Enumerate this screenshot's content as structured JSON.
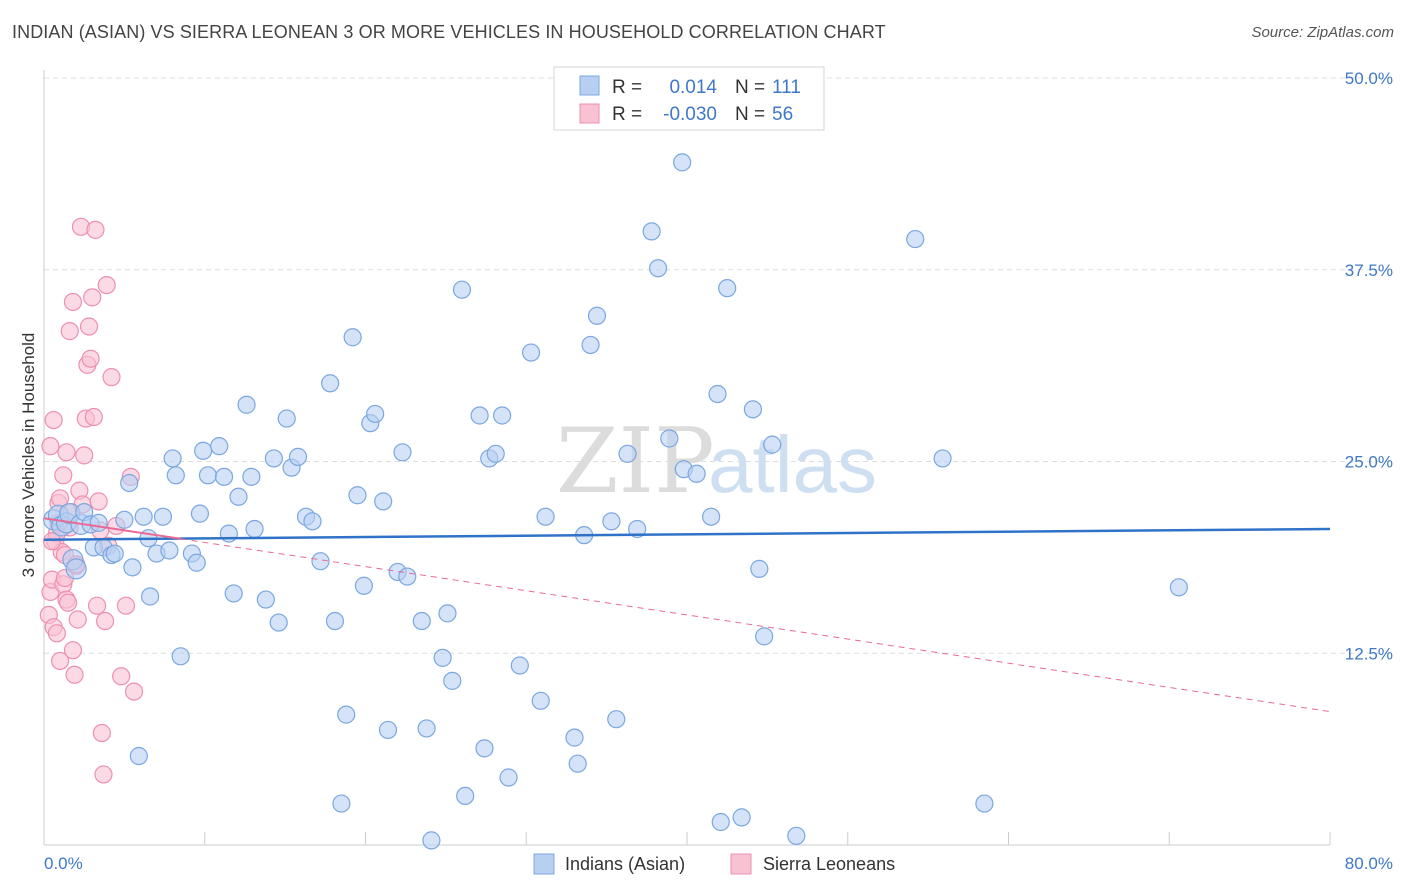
{
  "title": "INDIAN (ASIAN) VS SIERRA LEONEAN 3 OR MORE VEHICLES IN HOUSEHOLD CORRELATION CHART",
  "source": "Source: ZipAtlas.com",
  "watermark": {
    "zip": "ZIP",
    "atlas": "atlas"
  },
  "colors": {
    "blue_fill": "#b7d0f1",
    "blue_stroke": "#7ba7e0",
    "blue_line": "#2f73c9",
    "pink_fill": "#f8c2d3",
    "pink_stroke": "#ee8fb0",
    "pink_line": "#e86a95",
    "axis_text_blue": "#3f78c7",
    "grid": "#dddddd"
  },
  "legend": {
    "rows": [
      {
        "r_label": "R =",
        "r_value": "0.014",
        "n_label": "N =",
        "n_value": "111"
      },
      {
        "r_label": "R =",
        "r_value": "-0.030",
        "n_label": "N =",
        "n_value": "56"
      }
    ]
  },
  "bottom_legend": {
    "items": [
      "Indians (Asian)",
      "Sierra Leoneans"
    ]
  },
  "chart_data": {
    "type": "scatter",
    "title": "INDIAN (ASIAN) VS SIERRA LEONEAN 3 OR MORE VEHICLES IN HOUSEHOLD CORRELATION CHART",
    "xlabel": "",
    "ylabel": "3 or more Vehicles in Household",
    "xlim": [
      0,
      80
    ],
    "ylim": [
      0,
      50
    ],
    "x_tick_labels": [
      "0.0%",
      "80.0%"
    ],
    "y_ticks": [
      12.5,
      25.0,
      37.5,
      50.0
    ],
    "y_tick_labels": [
      "12.5%",
      "25.0%",
      "37.5%",
      "50.0%"
    ],
    "series": [
      {
        "name": "Indians (Asian)",
        "color": "#b7d0f1",
        "trend": {
          "x": [
            0,
            80
          ],
          "y": [
            19.9,
            20.6
          ]
        },
        "points": [
          [
            0.6,
            21.2
          ],
          [
            0.9,
            21.5
          ],
          [
            1.1,
            20.8
          ],
          [
            1.4,
            21.0
          ],
          [
            1.6,
            21.6
          ],
          [
            1.8,
            18.6
          ],
          [
            2.0,
            18.0
          ],
          [
            2.3,
            20.9
          ],
          [
            2.5,
            21.7
          ],
          [
            2.9,
            20.9
          ],
          [
            3.1,
            19.4
          ],
          [
            3.4,
            21.0
          ],
          [
            3.7,
            19.4
          ],
          [
            4.2,
            18.9
          ],
          [
            4.4,
            19.0
          ],
          [
            5.0,
            21.2
          ],
          [
            5.3,
            23.6
          ],
          [
            5.5,
            18.1
          ],
          [
            5.9,
            5.8
          ],
          [
            6.2,
            21.4
          ],
          [
            6.5,
            20.0
          ],
          [
            6.6,
            16.2
          ],
          [
            7.0,
            19.0
          ],
          [
            7.4,
            21.4
          ],
          [
            7.8,
            19.2
          ],
          [
            8.0,
            25.2
          ],
          [
            8.2,
            24.1
          ],
          [
            8.5,
            12.3
          ],
          [
            9.2,
            19.0
          ],
          [
            9.5,
            18.4
          ],
          [
            9.7,
            21.6
          ],
          [
            9.9,
            25.7
          ],
          [
            10.2,
            24.1
          ],
          [
            10.9,
            26.0
          ],
          [
            11.2,
            24.0
          ],
          [
            11.5,
            20.3
          ],
          [
            11.8,
            16.4
          ],
          [
            12.1,
            22.7
          ],
          [
            12.6,
            28.7
          ],
          [
            12.9,
            24.0
          ],
          [
            13.1,
            20.6
          ],
          [
            13.8,
            16.0
          ],
          [
            14.3,
            25.2
          ],
          [
            14.6,
            14.5
          ],
          [
            15.1,
            27.8
          ],
          [
            15.4,
            24.6
          ],
          [
            15.8,
            25.3
          ],
          [
            16.3,
            21.4
          ],
          [
            16.7,
            21.1
          ],
          [
            17.2,
            18.5
          ],
          [
            17.8,
            30.1
          ],
          [
            18.1,
            14.6
          ],
          [
            18.5,
            2.7
          ],
          [
            18.8,
            8.5
          ],
          [
            19.2,
            33.1
          ],
          [
            19.5,
            22.8
          ],
          [
            19.9,
            16.9
          ],
          [
            20.3,
            27.5
          ],
          [
            20.6,
            28.1
          ],
          [
            21.1,
            22.4
          ],
          [
            21.4,
            7.5
          ],
          [
            22.0,
            17.8
          ],
          [
            22.3,
            25.6
          ],
          [
            22.6,
            17.5
          ],
          [
            23.5,
            14.6
          ],
          [
            23.8,
            7.6
          ],
          [
            24.1,
            0.3
          ],
          [
            24.8,
            12.2
          ],
          [
            25.1,
            15.1
          ],
          [
            25.4,
            10.7
          ],
          [
            26.0,
            36.2
          ],
          [
            26.2,
            3.2
          ],
          [
            27.1,
            28.0
          ],
          [
            27.4,
            6.3
          ],
          [
            27.7,
            25.2
          ],
          [
            28.1,
            25.5
          ],
          [
            28.5,
            28.0
          ],
          [
            28.9,
            4.4
          ],
          [
            29.6,
            11.7
          ],
          [
            30.3,
            32.1
          ],
          [
            30.9,
            9.4
          ],
          [
            31.2,
            21.4
          ],
          [
            33.0,
            7.0
          ],
          [
            33.2,
            5.3
          ],
          [
            33.6,
            20.2
          ],
          [
            34.0,
            32.6
          ],
          [
            34.4,
            34.5
          ],
          [
            35.3,
            21.1
          ],
          [
            35.6,
            8.2
          ],
          [
            36.3,
            25.5
          ],
          [
            36.9,
            20.6
          ],
          [
            37.8,
            40.0
          ],
          [
            38.2,
            37.6
          ],
          [
            38.9,
            26.5
          ],
          [
            39.7,
            44.5
          ],
          [
            39.8,
            24.5
          ],
          [
            40.6,
            24.2
          ],
          [
            41.5,
            21.4
          ],
          [
            41.9,
            29.4
          ],
          [
            42.1,
            1.5
          ],
          [
            42.5,
            36.3
          ],
          [
            43.4,
            1.8
          ],
          [
            44.1,
            28.4
          ],
          [
            44.5,
            18.0
          ],
          [
            44.8,
            13.6
          ],
          [
            45.3,
            26.1
          ],
          [
            46.8,
            0.6
          ],
          [
            54.2,
            39.5
          ],
          [
            55.9,
            25.2
          ],
          [
            58.5,
            2.7
          ],
          [
            70.6,
            16.8
          ]
        ]
      },
      {
        "name": "Sierra Leoneans",
        "color": "#f8c2d3",
        "trend": {
          "x": [
            0,
            80
          ],
          "y": [
            21.3,
            8.7
          ]
        },
        "points": [
          [
            0.3,
            15.0
          ],
          [
            0.4,
            16.5
          ],
          [
            0.5,
            17.3
          ],
          [
            0.6,
            14.2
          ],
          [
            0.7,
            19.8
          ],
          [
            0.8,
            20.3
          ],
          [
            0.9,
            22.3
          ],
          [
            1.0,
            22.6
          ],
          [
            1.1,
            19.1
          ],
          [
            1.2,
            17.0
          ],
          [
            1.3,
            18.9
          ],
          [
            1.4,
            16.0
          ],
          [
            1.5,
            15.8
          ],
          [
            1.6,
            20.7
          ],
          [
            1.7,
            21.7
          ],
          [
            1.8,
            12.7
          ],
          [
            1.9,
            11.1
          ],
          [
            2.0,
            18.2
          ],
          [
            2.1,
            14.7
          ],
          [
            2.2,
            23.1
          ],
          [
            2.3,
            40.3
          ],
          [
            2.4,
            22.2
          ],
          [
            2.5,
            25.4
          ],
          [
            2.6,
            27.8
          ],
          [
            2.7,
            31.3
          ],
          [
            2.8,
            33.8
          ],
          [
            2.9,
            31.7
          ],
          [
            3.0,
            35.7
          ],
          [
            3.1,
            27.9
          ],
          [
            3.2,
            40.1
          ],
          [
            3.3,
            15.6
          ],
          [
            3.4,
            22.4
          ],
          [
            3.5,
            20.5
          ],
          [
            3.6,
            7.3
          ],
          [
            3.7,
            4.6
          ],
          [
            3.8,
            14.6
          ],
          [
            3.9,
            36.5
          ],
          [
            4.0,
            19.5
          ],
          [
            4.2,
            30.5
          ],
          [
            4.5,
            20.8
          ],
          [
            4.8,
            11.0
          ],
          [
            5.1,
            15.6
          ],
          [
            5.4,
            24.0
          ],
          [
            5.6,
            10.0
          ],
          [
            0.4,
            26.0
          ],
          [
            0.6,
            27.7
          ],
          [
            0.8,
            13.8
          ],
          [
            1.0,
            12.0
          ],
          [
            1.2,
            24.1
          ],
          [
            1.4,
            25.6
          ],
          [
            1.6,
            33.5
          ],
          [
            1.8,
            35.4
          ],
          [
            2.0,
            18.3
          ],
          [
            0.5,
            19.8
          ],
          [
            0.9,
            21.0
          ],
          [
            1.3,
            17.4
          ]
        ]
      }
    ]
  }
}
